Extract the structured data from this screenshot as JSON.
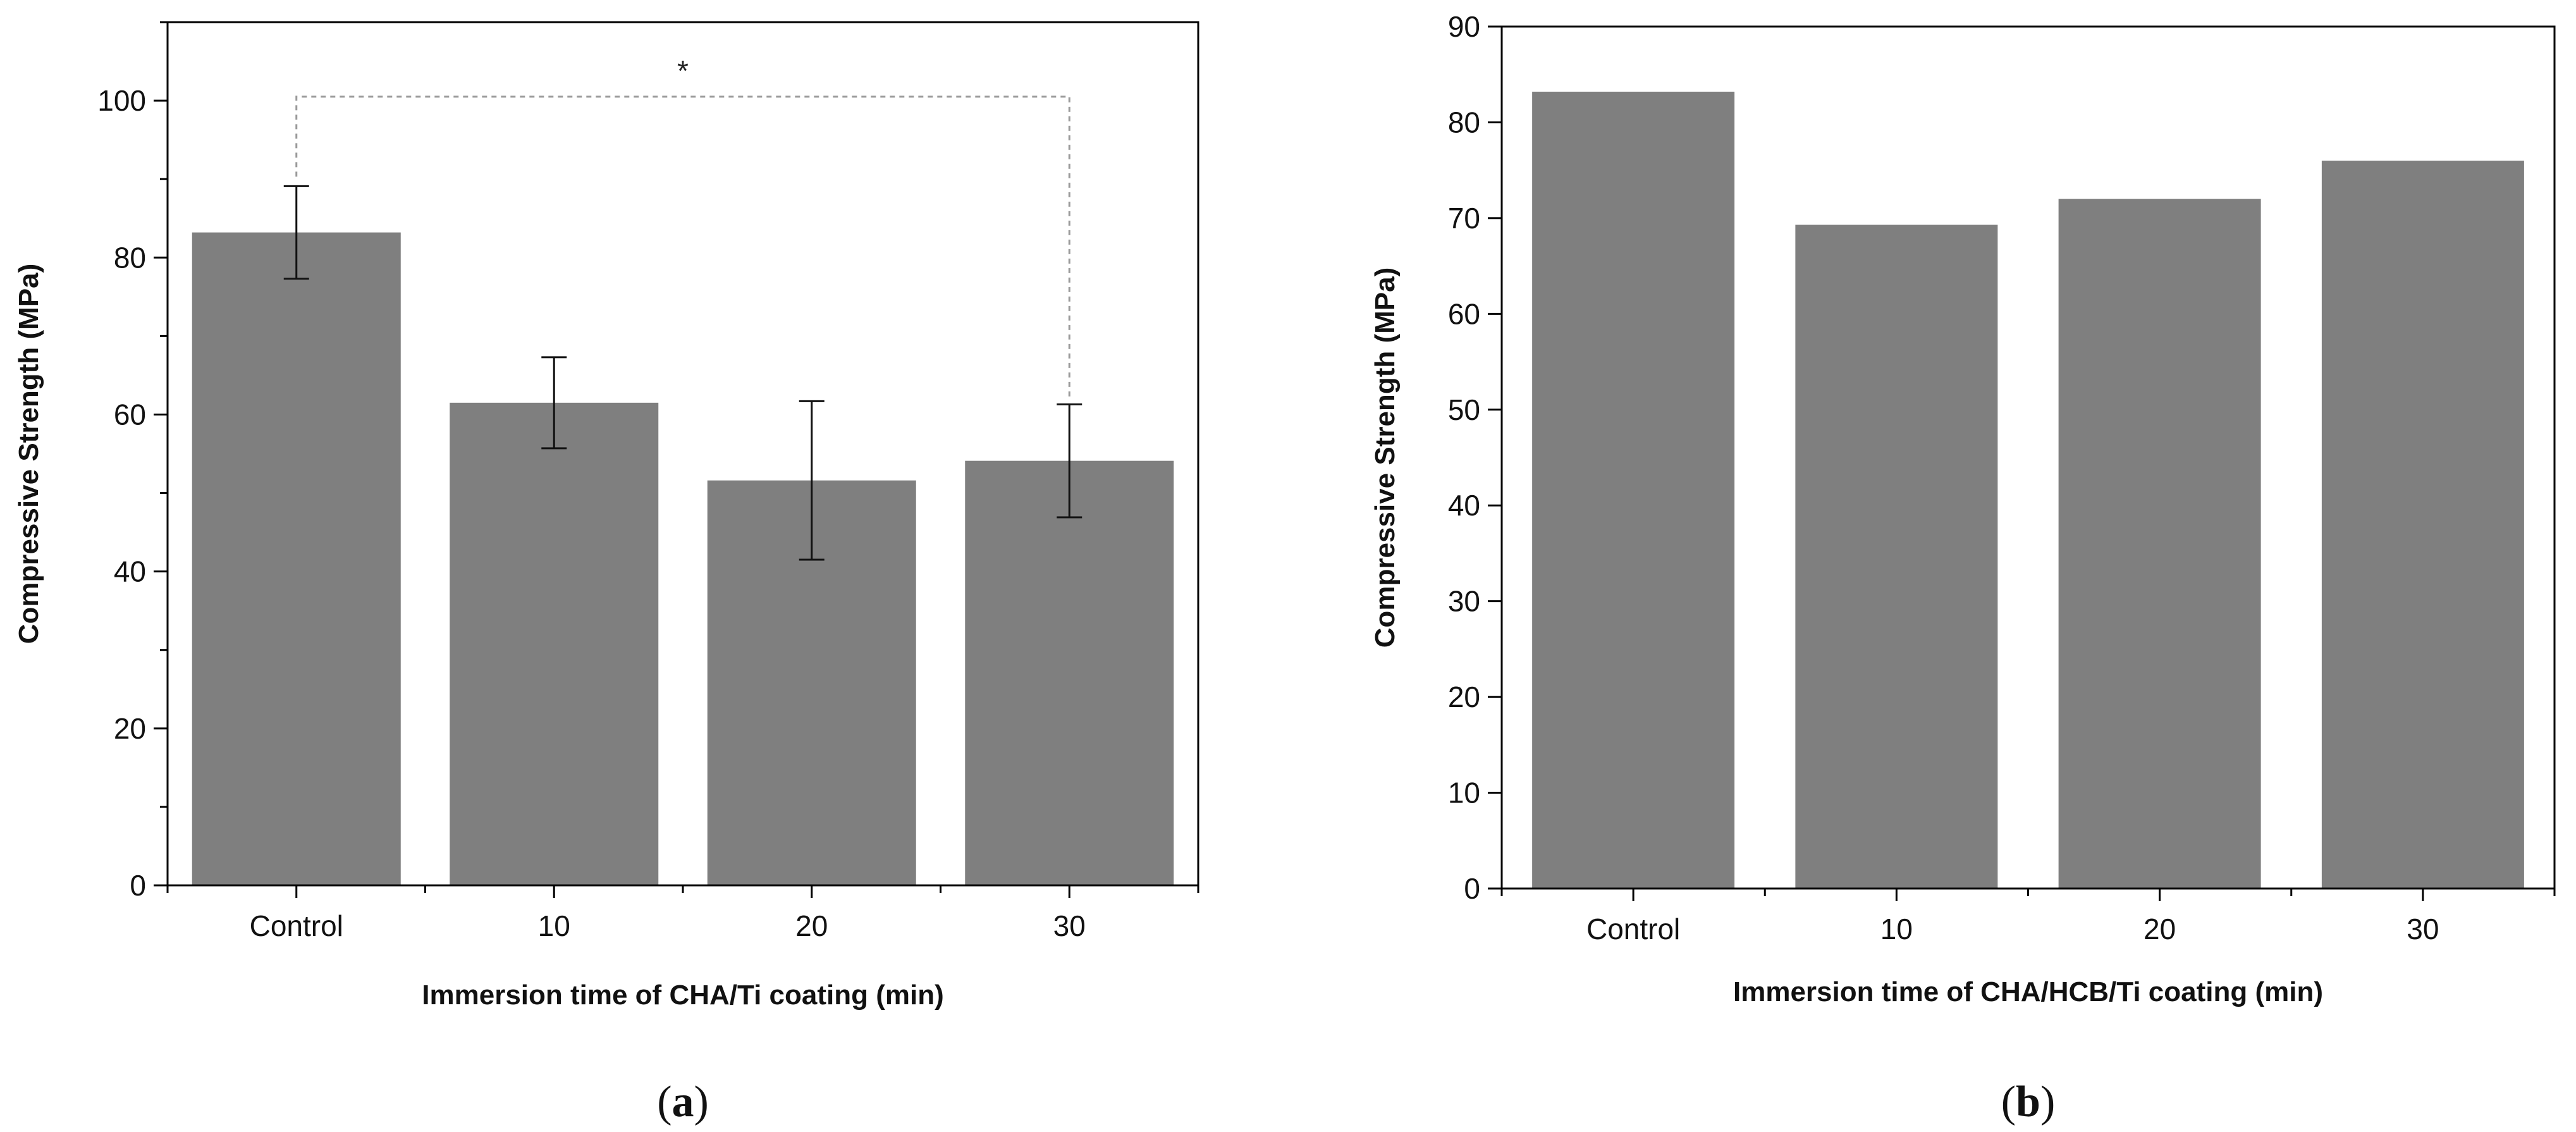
{
  "colors": {
    "bar": "#7f7f7f",
    "axis": "#000000",
    "bracket": "#9a9a9a",
    "text": "#111111"
  },
  "chart_data": [
    {
      "type": "bar",
      "panel": "a",
      "panel_label": {
        "open": "(",
        "letter": "a",
        "close": ")"
      },
      "categories": [
        "Control",
        "10",
        "20",
        "30"
      ],
      "values": [
        83.2,
        61.5,
        51.6,
        54.1
      ],
      "errors": [
        5.9,
        5.8,
        10.1,
        7.2
      ],
      "xlabel": "Immersion time of CHA/Ti coating (min)",
      "ylabel": "Compressive Strength (MPa)",
      "ylim": [
        0,
        110
      ],
      "yticks": [
        0,
        20,
        40,
        60,
        80,
        100
      ],
      "ytick_labels": [
        "0",
        "20",
        "40",
        "60",
        "80",
        "100"
      ],
      "significance": {
        "between": [
          "Control",
          "30"
        ],
        "label": "*",
        "level": 100.5
      }
    },
    {
      "type": "bar",
      "panel": "b",
      "panel_label": {
        "open": "(",
        "letter": "b",
        "close": ")"
      },
      "categories": [
        "Control",
        "10",
        "20",
        "30"
      ],
      "values": [
        83.2,
        69.3,
        72.0,
        76.0
      ],
      "xlabel": "Immersion time of CHA/HCB/Ti coating (min)",
      "ylabel": "Compressive Strength (MPa)",
      "ylim": [
        0,
        90
      ],
      "yticks": [
        0,
        10,
        20,
        30,
        40,
        50,
        60,
        70,
        80,
        90
      ],
      "ytick_labels": [
        "0",
        "10",
        "20",
        "30",
        "40",
        "50",
        "60",
        "70",
        "80",
        "90"
      ]
    }
  ]
}
